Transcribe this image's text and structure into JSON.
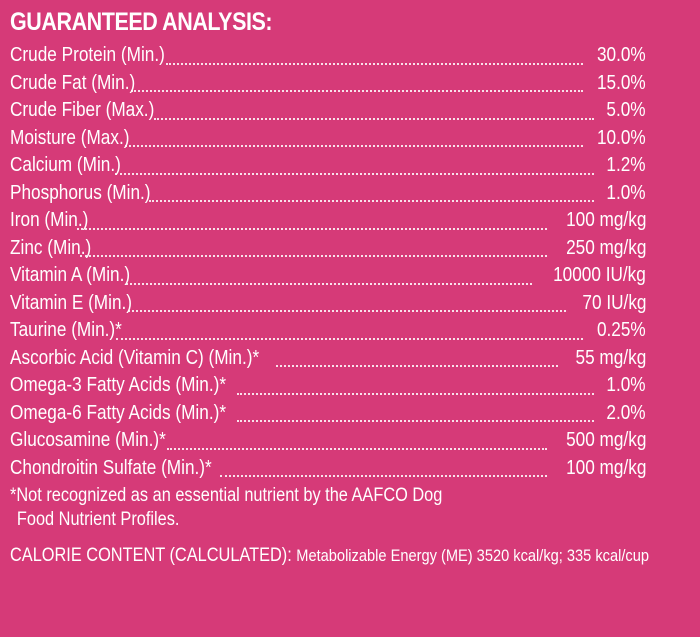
{
  "heading": "GUARANTEED ANALYSIS:",
  "rows": [
    {
      "label": "Crude Protein (Min.)",
      "value": "30.0%"
    },
    {
      "label": "Crude Fat (Min.)",
      "value": "15.0%"
    },
    {
      "label": "Crude Fiber (Max.)",
      "value": "5.0%"
    },
    {
      "label": "Moisture (Max.)",
      "value": "10.0%"
    },
    {
      "label": "Calcium (Min.)",
      "value": "1.2%"
    },
    {
      "label": "Phosphorus (Min.)",
      "value": "1.0%"
    },
    {
      "label": "Iron (Min.)",
      "value": "100 mg/kg"
    },
    {
      "label": "Zinc (Min.)",
      "value": "250 mg/kg"
    },
    {
      "label": "Vitamin A (Min.)",
      "value": "10000 IU/kg"
    },
    {
      "label": "Vitamin E (Min.)",
      "value": "70 IU/kg"
    },
    {
      "label": "Taurine (Min.)*",
      "value": "0.25%"
    },
    {
      "label": "Ascorbic Acid (Vitamin C) (Min.)*",
      "value": "55 mg/kg"
    },
    {
      "label": "Omega-3 Fatty Acids (Min.)*",
      "value": "1.0%"
    },
    {
      "label": "Omega-6 Fatty Acids (Min.)*",
      "value": "2.0%"
    },
    {
      "label": "Glucosamine (Min.)*",
      "value": "500 mg/kg"
    },
    {
      "label": "Chondroitin Sulfate (Min.)*",
      "value": "100 mg/kg"
    }
  ],
  "footnote": {
    "line1": "*Not recognized as an essential nutrient by the AAFCO Dog",
    "line2": "Food Nutrient Profiles."
  },
  "calorie": {
    "label": "CALORIE CONTENT (CALCULATED):",
    "text": "Metabolizable Energy (ME) 3520 kcal/kg; 335 kcal/cup"
  },
  "colors": {
    "background": "#d63a78",
    "text": "#ffffff"
  }
}
